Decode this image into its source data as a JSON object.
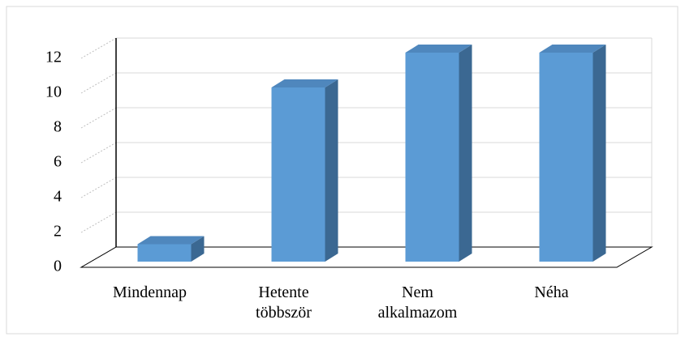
{
  "chart_data": {
    "type": "bar3d",
    "categories": [
      "Mindennap",
      "Hetente többször",
      "Nem alkalmazom",
      "Néha"
    ],
    "values": [
      1,
      10,
      12,
      12
    ],
    "color": "#5b9bd5",
    "ylim": [
      0,
      12
    ],
    "yticks": [
      0,
      2,
      4,
      6,
      8,
      10,
      12
    ],
    "grid": true
  }
}
